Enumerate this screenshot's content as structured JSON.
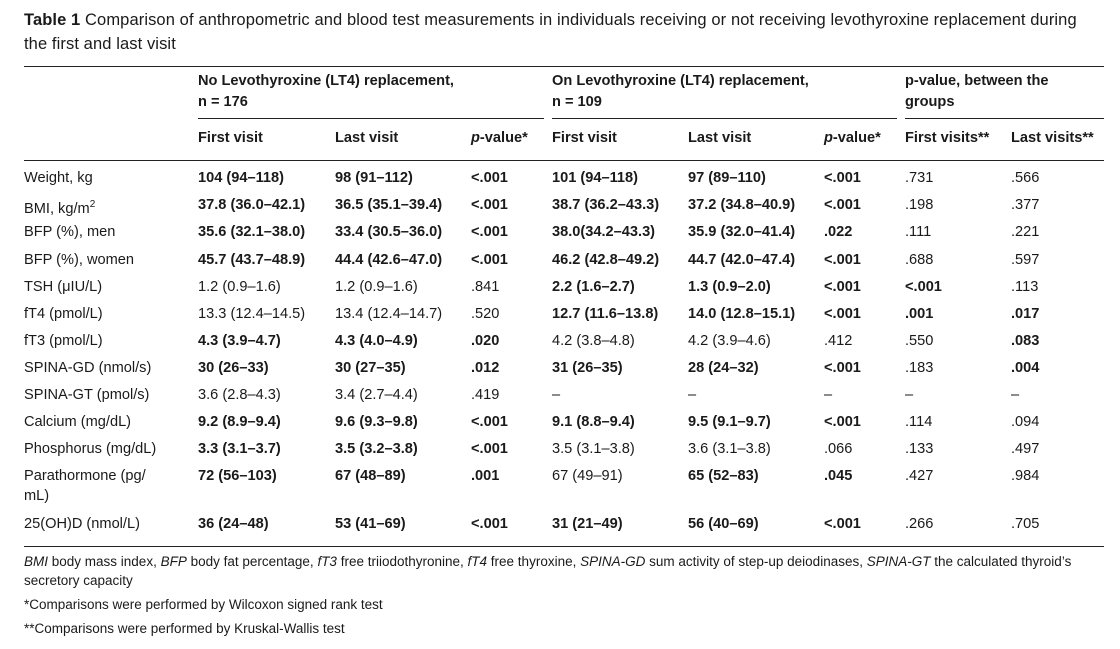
{
  "caption": {
    "label": "Table 1",
    "text": "Comparison of anthropometric and blood test measurements in individuals receiving or not receiving levothyroxine replacement during the first and last visit"
  },
  "groups": [
    {
      "line1": "No Levothyroxine (LT4) replacement,",
      "line2": "n = 176"
    },
    {
      "line1": "On Levothyroxine (LT4) replacement,",
      "line2": "n = 109"
    },
    {
      "line1": "p-value, between the",
      "line2": "groups"
    }
  ],
  "subheaders": [
    "First visit",
    "Last visit",
    "p-value*",
    "First visit",
    "Last visit",
    "p-value*",
    "First visits**",
    "Last visits**"
  ],
  "rows": [
    {
      "label": "Weight, kg",
      "cells": [
        {
          "v": "104 (94–118)",
          "b": true
        },
        {
          "v": "98 (91–112)",
          "b": true
        },
        {
          "v": "<.001",
          "b": true
        },
        {
          "v": "101 (94–118)",
          "b": true
        },
        {
          "v": "97 (89–110)",
          "b": true
        },
        {
          "v": "<.001",
          "b": true
        },
        {
          "v": ".731",
          "b": false
        },
        {
          "v": ".566",
          "b": false
        }
      ]
    },
    {
      "label": "BMI, kg/m",
      "sup": "2",
      "cells": [
        {
          "v": "37.8 (36.0–42.1)",
          "b": true
        },
        {
          "v": "36.5 (35.1–39.4)",
          "b": true
        },
        {
          "v": "<.001",
          "b": true
        },
        {
          "v": "38.7 (36.2–43.3)",
          "b": true
        },
        {
          "v": "37.2 (34.8–40.9)",
          "b": true
        },
        {
          "v": "<.001",
          "b": true
        },
        {
          "v": ".198",
          "b": false
        },
        {
          "v": ".377",
          "b": false
        }
      ]
    },
    {
      "label": "BFP (%), men",
      "cells": [
        {
          "v": "35.6 (32.1–38.0)",
          "b": true
        },
        {
          "v": "33.4 (30.5–36.0)",
          "b": true
        },
        {
          "v": "<.001",
          "b": true
        },
        {
          "v": "38.0(34.2–43.3)",
          "b": true
        },
        {
          "v": "35.9 (32.0–41.4)",
          "b": true
        },
        {
          "v": ".022",
          "b": true
        },
        {
          "v": ".111",
          "b": false
        },
        {
          "v": ".221",
          "b": false
        }
      ]
    },
    {
      "label": "BFP (%), women",
      "cells": [
        {
          "v": "45.7 (43.7–48.9)",
          "b": true
        },
        {
          "v": "44.4 (42.6–47.0)",
          "b": true
        },
        {
          "v": "<.001",
          "b": true
        },
        {
          "v": "46.2 (42.8–49.2)",
          "b": true
        },
        {
          "v": "44.7 (42.0–47.4)",
          "b": true
        },
        {
          "v": "<.001",
          "b": true
        },
        {
          "v": ".688",
          "b": false
        },
        {
          "v": ".597",
          "b": false
        }
      ]
    },
    {
      "label": "TSH (μIU/L)",
      "cells": [
        {
          "v": "1.2 (0.9–1.6)",
          "b": false
        },
        {
          "v": "1.2 (0.9–1.6)",
          "b": false
        },
        {
          "v": ".841",
          "b": false
        },
        {
          "v": "2.2 (1.6–2.7)",
          "b": true
        },
        {
          "v": "1.3 (0.9–2.0)",
          "b": true
        },
        {
          "v": "<.001",
          "b": true
        },
        {
          "v": "<.001",
          "b": true
        },
        {
          "v": ".113",
          "b": false
        }
      ]
    },
    {
      "label": "fT4 (pmol/L)",
      "cells": [
        {
          "v": "13.3 (12.4–14.5)",
          "b": false
        },
        {
          "v": "13.4 (12.4–14.7)",
          "b": false
        },
        {
          "v": ".520",
          "b": false
        },
        {
          "v": "12.7 (11.6–13.8)",
          "b": true
        },
        {
          "v": "14.0 (12.8–15.1)",
          "b": true
        },
        {
          "v": "<.001",
          "b": true
        },
        {
          "v": ".001",
          "b": true
        },
        {
          "v": ".017",
          "b": true
        }
      ]
    },
    {
      "label": "fT3 (pmol/L)",
      "cells": [
        {
          "v": "4.3 (3.9–4.7)",
          "b": true
        },
        {
          "v": "4.3 (4.0–4.9)",
          "b": true
        },
        {
          "v": ".020",
          "b": true
        },
        {
          "v": "4.2 (3.8–4.8)",
          "b": false
        },
        {
          "v": "4.2 (3.9–4.6)",
          "b": false
        },
        {
          "v": ".412",
          "b": false
        },
        {
          "v": ".550",
          "b": false
        },
        {
          "v": ".083",
          "b": true
        }
      ]
    },
    {
      "label": "SPINA-GD (nmol/s)",
      "cells": [
        {
          "v": "30 (26–33)",
          "b": true
        },
        {
          "v": "30 (27–35)",
          "b": true
        },
        {
          "v": ".012",
          "b": true
        },
        {
          "v": "31 (26–35)",
          "b": true
        },
        {
          "v": "28 (24–32)",
          "b": true
        },
        {
          "v": "<.001",
          "b": true
        },
        {
          "v": ".183",
          "b": false
        },
        {
          "v": ".004",
          "b": true
        }
      ]
    },
    {
      "label": "SPINA-GT (pmol/s)",
      "cells": [
        {
          "v": "3.6 (2.8–4.3)",
          "b": false
        },
        {
          "v": "3.4 (2.7–4.4)",
          "b": false
        },
        {
          "v": ".419",
          "b": false
        },
        {
          "v": "–",
          "b": false
        },
        {
          "v": "–",
          "b": false
        },
        {
          "v": "–",
          "b": false
        },
        {
          "v": "–",
          "b": false
        },
        {
          "v": "–",
          "b": false
        }
      ]
    },
    {
      "label": "Calcium (mg/dL)",
      "cells": [
        {
          "v": "9.2 (8.9–9.4)",
          "b": true
        },
        {
          "v": "9.6 (9.3–9.8)",
          "b": true
        },
        {
          "v": "<.001",
          "b": true
        },
        {
          "v": "9.1 (8.8–9.4)",
          "b": true
        },
        {
          "v": "9.5 (9.1–9.7)",
          "b": true
        },
        {
          "v": "<.001",
          "b": true
        },
        {
          "v": ".114",
          "b": false
        },
        {
          "v": ".094",
          "b": false
        }
      ]
    },
    {
      "label": "Phosphorus (mg/dL)",
      "cells": [
        {
          "v": "3.3 (3.1–3.7)",
          "b": true
        },
        {
          "v": "3.5 (3.2–3.8)",
          "b": true
        },
        {
          "v": "<.001",
          "b": true
        },
        {
          "v": "3.5 (3.1–3.8)",
          "b": false
        },
        {
          "v": "3.6 (3.1–3.8)",
          "b": false
        },
        {
          "v": ".066",
          "b": false
        },
        {
          "v": ".133",
          "b": false
        },
        {
          "v": ".497",
          "b": false
        }
      ]
    },
    {
      "label_line1": "Parathormone (pg/",
      "label_line2": "mL)",
      "cells": [
        {
          "v": "72 (56–103)",
          "b": true
        },
        {
          "v": "67 (48–89)",
          "b": true
        },
        {
          "v": ".001",
          "b": true
        },
        {
          "v": "67 (49–91)",
          "b": false
        },
        {
          "v": "65 (52–83)",
          "b": true
        },
        {
          "v": ".045",
          "b": true
        },
        {
          "v": ".427",
          "b": false
        },
        {
          "v": ".984",
          "b": false
        }
      ]
    },
    {
      "label": "25(OH)D (nmol/L)",
      "cells": [
        {
          "v": "36 (24–48)",
          "b": true
        },
        {
          "v": "53 (41–69)",
          "b": true
        },
        {
          "v": "<.001",
          "b": true
        },
        {
          "v": "31 (21–49)",
          "b": true
        },
        {
          "v": "56 (40–69)",
          "b": true
        },
        {
          "v": "<.001",
          "b": true
        },
        {
          "v": ".266",
          "b": false
        },
        {
          "v": ".705",
          "b": false
        }
      ]
    }
  ],
  "footnotes": {
    "abbr": [
      {
        "term": "BMI",
        "def": " body mass index, "
      },
      {
        "term": "BFP",
        "def": " body fat percentage, "
      },
      {
        "term": "fT3",
        "def": " free triiodothyronine, "
      },
      {
        "term": "fT4",
        "def": " free thyroxine, "
      },
      {
        "term": "SPINA-GD",
        "def": " sum activity of step-up deiodinases, "
      },
      {
        "term": "SPINA-GT",
        "def": " the calculated thyroid’s secretory capacity"
      }
    ],
    "note1": "*Comparisons were performed by Wilcoxon signed rank test",
    "note2": "**Comparisons were performed by Kruskal-Wallis test"
  }
}
